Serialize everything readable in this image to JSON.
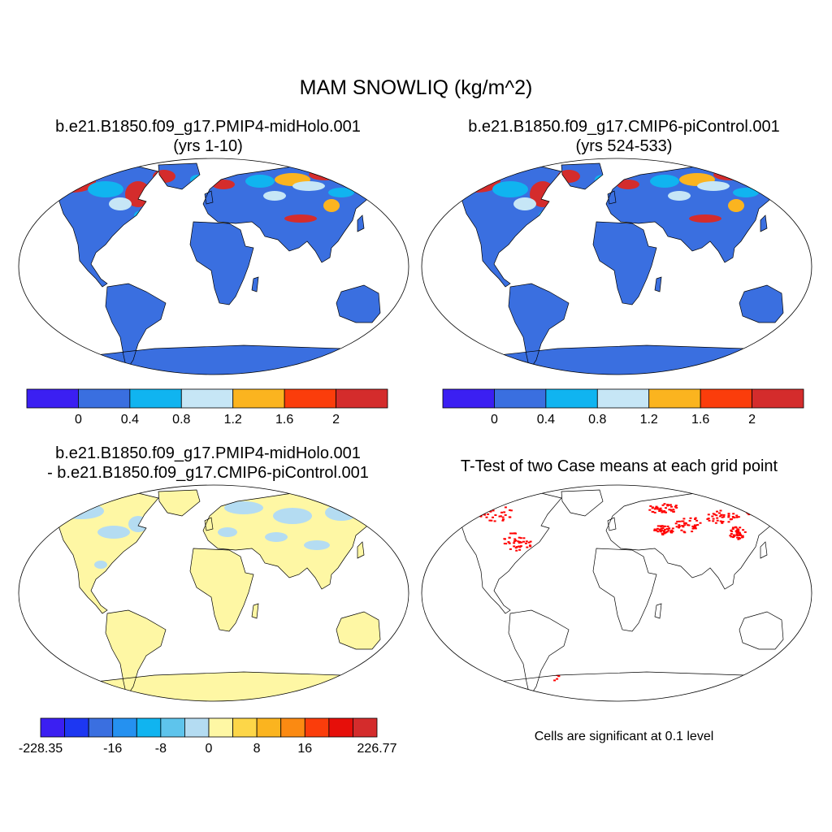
{
  "title": "MAM SNOWLIQ (kg/m^2)",
  "panels": [
    {
      "title": "b.e21.B1850.f09_g17.PMIP4-midHolo.001",
      "subtitle": "(yrs 1-10)"
    },
    {
      "title": "b.e21.B1850.f09_g17.CMIP6-piControl.001",
      "subtitle": "(yrs 524-533)"
    },
    {
      "title": "b.e21.B1850.f09_g17.PMIP4-midHolo.001",
      "subtitle": "- b.e21.B1850.f09_g17.CMIP6-piControl.001"
    },
    {
      "title": "T-Test of two Case means at each grid point",
      "note": "Cells are significant at 0.1 level"
    }
  ],
  "colorbar_abs": {
    "colors": [
      "#3b1ff2",
      "#3a6fe0",
      "#10b4f0",
      "#c6e6f6",
      "#fbb41f",
      "#fb3d0b",
      "#d42c2c"
    ],
    "labels": [
      "0",
      "0.4",
      "0.8",
      "1.2",
      "1.6",
      "2"
    ]
  },
  "colorbar_diff": {
    "colors": [
      "#3b1ff2",
      "#1d37f2",
      "#3a6fe0",
      "#2591f0",
      "#10b4f0",
      "#5ec4ec",
      "#b4dcf2",
      "#fef7a4",
      "#fdd648",
      "#fbb41f",
      "#fb8a12",
      "#fb3d0b",
      "#e60f0a",
      "#d42c2c"
    ],
    "labels": [
      "-228.35",
      "-16",
      "-8",
      "0",
      "8",
      "16",
      "226.77"
    ]
  },
  "map_colors": {
    "land_abs": "#3a6fe0",
    "snow_light": "#c6e6f6",
    "snow_cyan": "#10b4f0",
    "snow_orange": "#fbb41f",
    "snow_red": "#d42c2c",
    "land_diff": "#fef7a4",
    "diff_blue": "#b4dcf2",
    "significant": "#ff0000",
    "coast": "#000000"
  }
}
